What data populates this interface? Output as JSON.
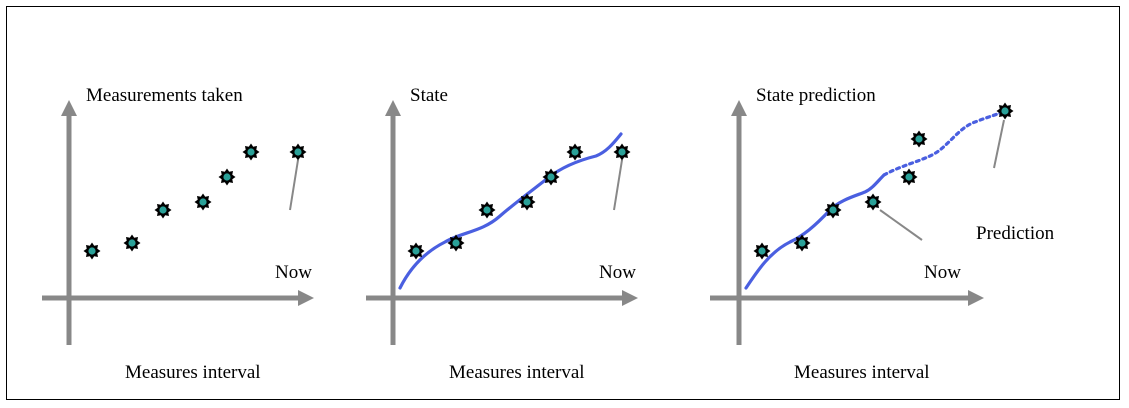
{
  "colors": {
    "axis": "#888888",
    "pointer": "#888888",
    "curve": "#4a5fe0",
    "marker_fill": "#000000",
    "marker_center": "#2aa198"
  },
  "icons": {
    "marker": "gear-star-marker-icon"
  },
  "panels": [
    {
      "id": "measurements",
      "title": "Measurements taken",
      "now_label": "Now",
      "xlabel": "Measures interval"
    },
    {
      "id": "state",
      "title": "State",
      "now_label": "Now",
      "xlabel": "Measures interval"
    },
    {
      "id": "prediction",
      "title": "State prediction",
      "now_label": "Now",
      "prediction_label": "Prediction",
      "xlabel": "Measures interval"
    }
  ]
}
